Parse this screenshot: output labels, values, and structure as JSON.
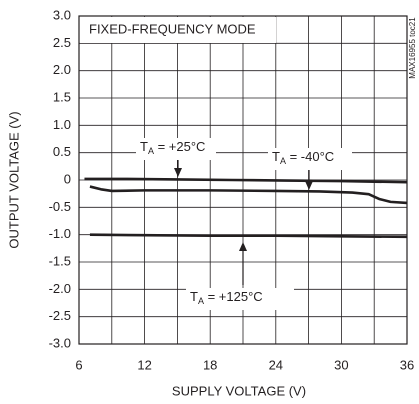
{
  "chart_data": {
    "type": "line",
    "title": "FIXED-FREQUENCY MODE",
    "side_label": "MAX16955 toc21",
    "x_label": "SUPPLY VOLTAGE (V)",
    "y_label": "OUTPUT VOLTAGE (V)",
    "xlim": [
      6,
      36
    ],
    "xticks": [
      6,
      12,
      18,
      24,
      30,
      36
    ],
    "x_minor_grid": [
      9,
      15,
      21,
      27,
      33
    ],
    "ylim": [
      -3,
      3
    ],
    "yticks": [
      {
        "value": 3,
        "label": "3.0"
      },
      2.5,
      {
        "value": 2,
        "label": "2.0"
      },
      1.5,
      {
        "value": 1,
        "label": "1.0"
      },
      0.5,
      0,
      -0.5,
      {
        "value": -1,
        "label": "-1.0"
      },
      -1.5,
      {
        "value": -2,
        "label": "-2.0"
      },
      -2.5,
      {
        "value": -3,
        "label": "-3.0"
      }
    ],
    "grid": true,
    "color": "#231f20",
    "series": [
      {
        "name": {
          "base": "T",
          "sub": "A",
          "text": " = +25°C"
        },
        "x": [
          6.5,
          10,
          15,
          20,
          25,
          30,
          33,
          36
        ],
        "values": [
          0.02,
          0.02,
          0.01,
          0.0,
          -0.01,
          -0.02,
          -0.03,
          -0.04
        ]
      },
      {
        "name": {
          "base": "T",
          "sub": "A",
          "text": " = -40°C"
        },
        "x": [
          7,
          8,
          9,
          12,
          18,
          24,
          28,
          31,
          32.5,
          33.5,
          34.5,
          36
        ],
        "values": [
          -0.12,
          -0.17,
          -0.2,
          -0.19,
          -0.19,
          -0.2,
          -0.21,
          -0.23,
          -0.26,
          -0.35,
          -0.4,
          -0.42
        ]
      },
      {
        "name": {
          "base": "T",
          "sub": "A",
          "text": " = +125°C"
        },
        "x": [
          7,
          12,
          18,
          24,
          30,
          36
        ],
        "values": [
          -1.0,
          -1.01,
          -1.02,
          -1.02,
          -1.03,
          -1.04
        ]
      }
    ]
  }
}
